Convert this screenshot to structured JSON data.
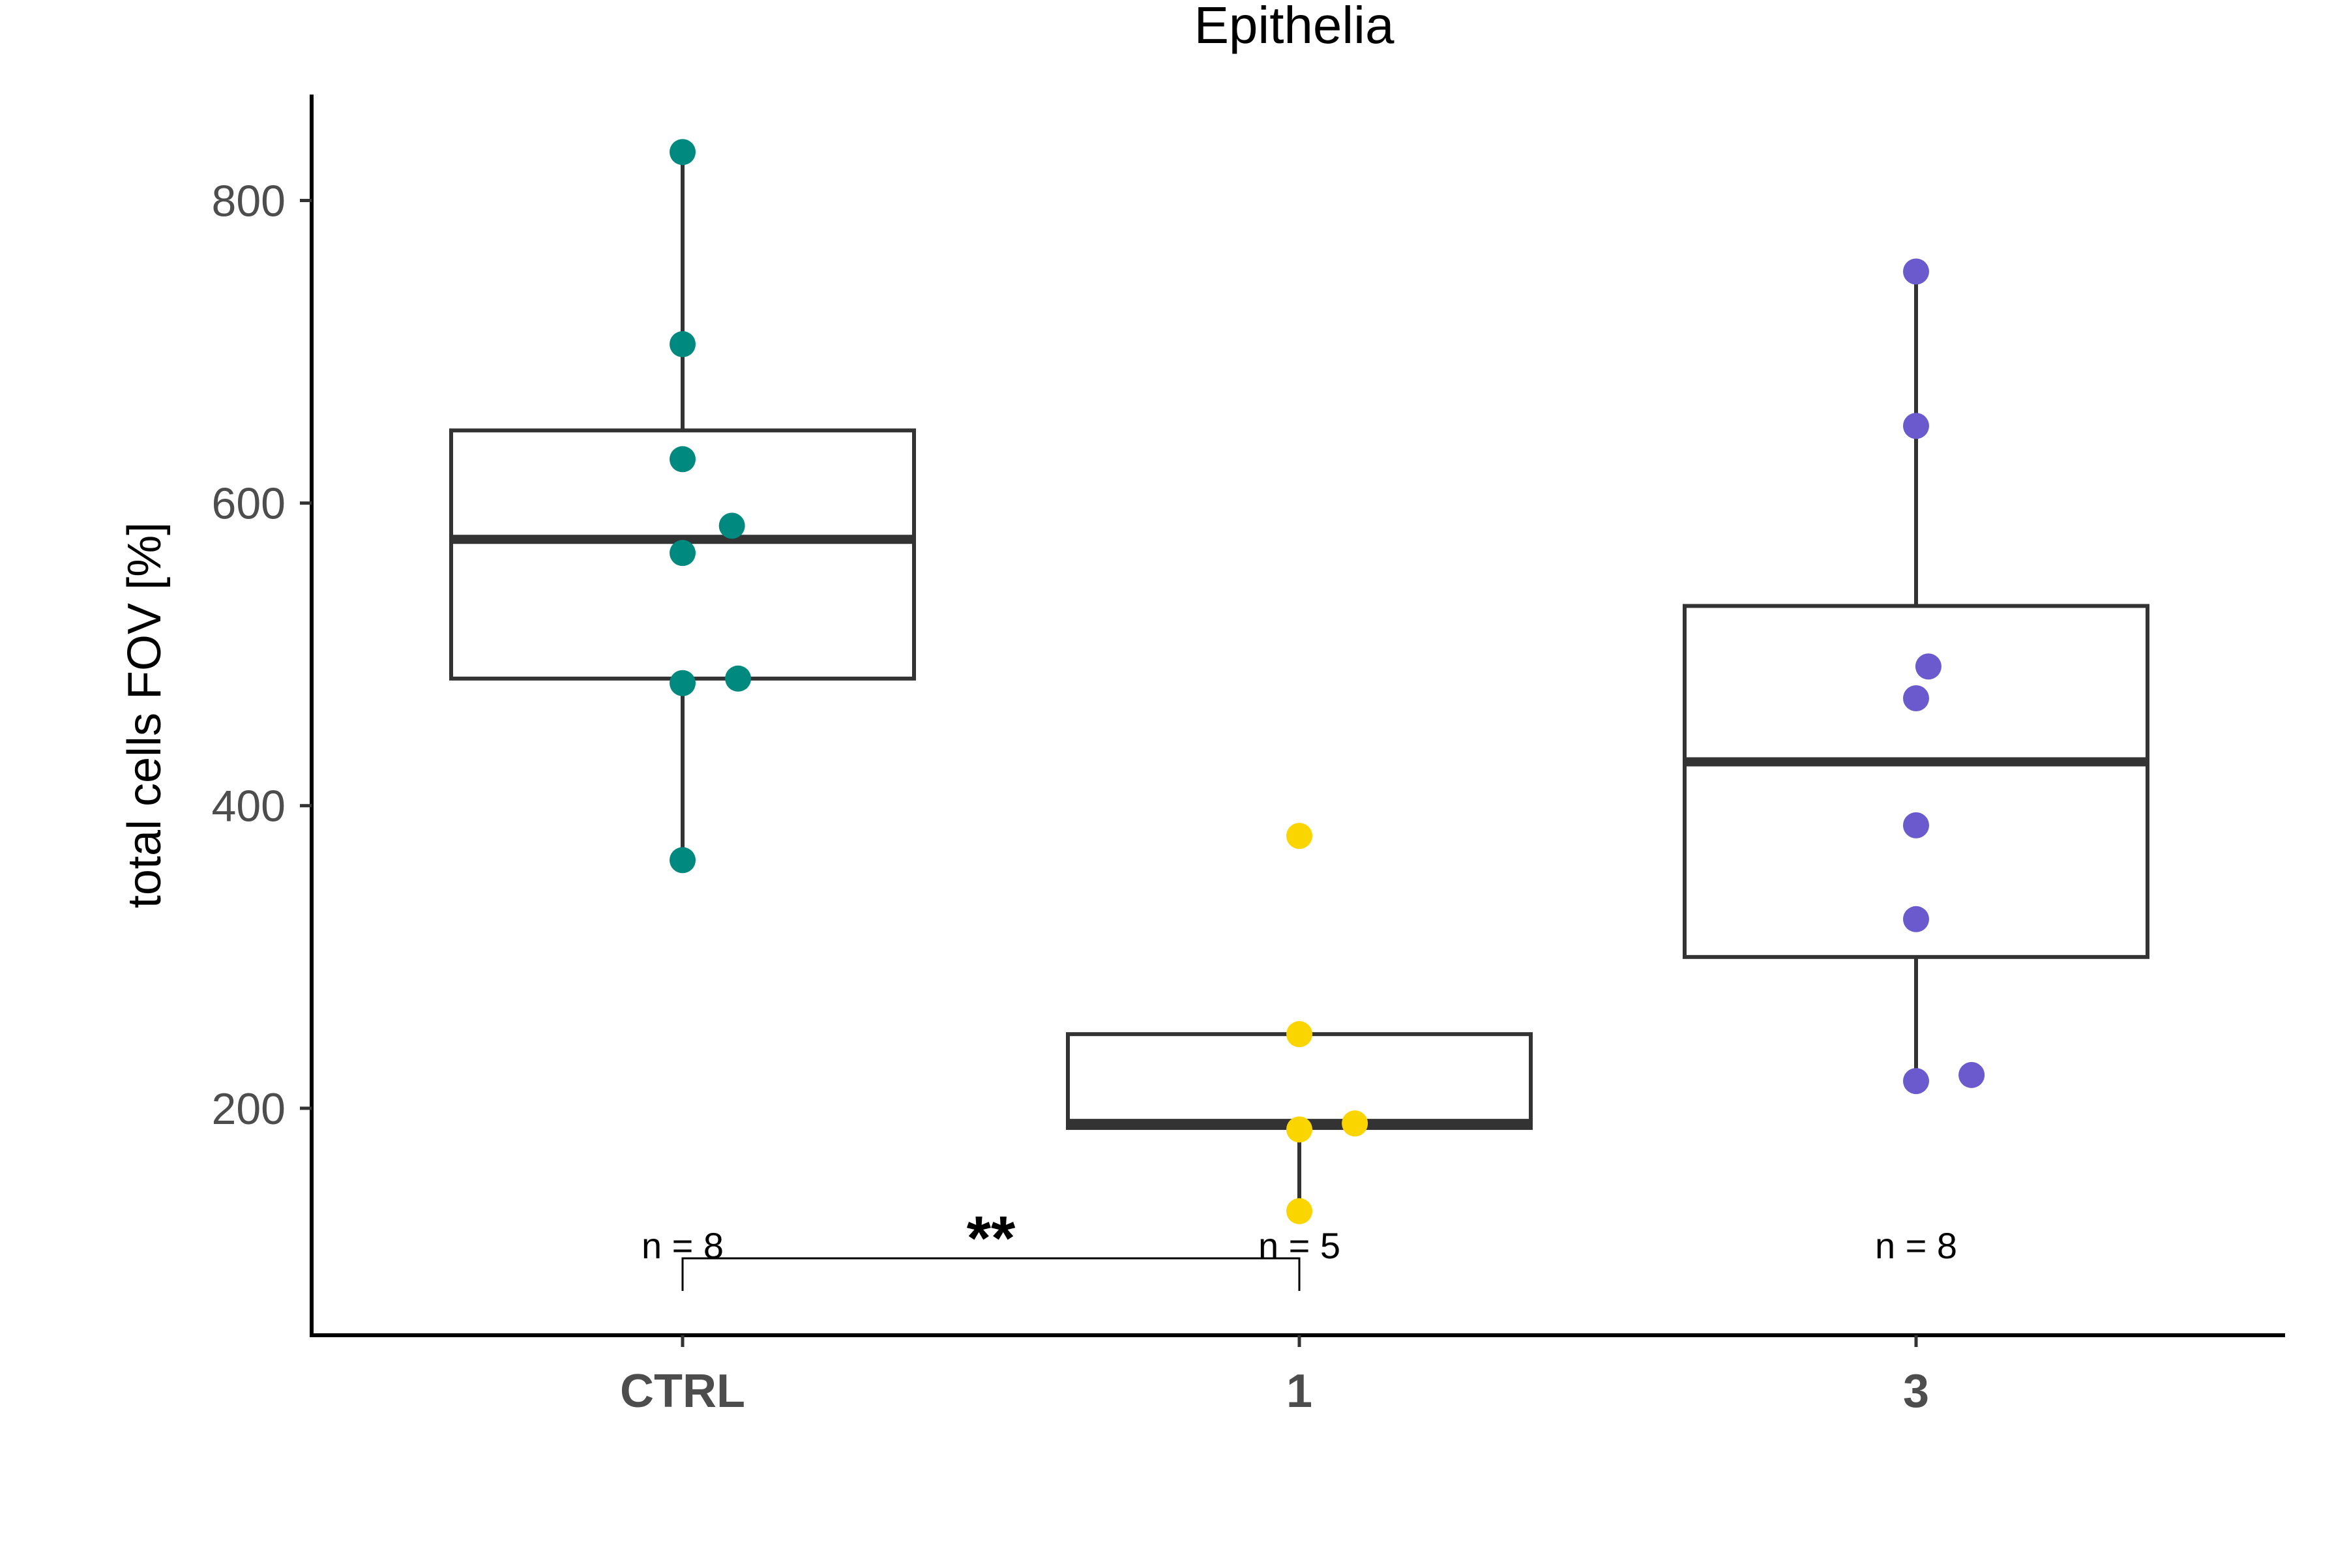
{
  "chart_data": {
    "type": "box",
    "title": "Epithelia",
    "xlabel": "",
    "ylabel": "total cells FOV [%]",
    "ylim": [
      50,
      870
    ],
    "yticks": [
      200,
      400,
      600,
      800
    ],
    "grid": false,
    "legend": "none",
    "categories": [
      "CTRL",
      "1",
      "3"
    ],
    "groups": [
      {
        "category": "CTRL",
        "color": "#00897f",
        "n_label": "n = 8",
        "box": {
          "q1": 484,
          "median": 576,
          "q3": 648,
          "whisker_low": 364,
          "whisker_high": 832
        },
        "points": [
          {
            "x_offset": 0.0,
            "value": 832
          },
          {
            "x_offset": 0.0,
            "value": 705
          },
          {
            "x_offset": 0.0,
            "value": 629
          },
          {
            "x_offset": 0.08,
            "value": 585
          },
          {
            "x_offset": 0.0,
            "value": 567
          },
          {
            "x_offset": 0.0,
            "value": 481
          },
          {
            "x_offset": 0.09,
            "value": 484
          },
          {
            "x_offset": 0.0,
            "value": 364
          }
        ]
      },
      {
        "category": "1",
        "color": "#fad500",
        "n_label": "n = 5",
        "box": {
          "q1": 187,
          "median": 190,
          "q3": 249,
          "whisker_low": 132,
          "whisker_high": 249
        },
        "outliers": [
          380
        ],
        "points": [
          {
            "x_offset": 0.0,
            "value": 380
          },
          {
            "x_offset": 0.0,
            "value": 249
          },
          {
            "x_offset": 0.09,
            "value": 190
          },
          {
            "x_offset": 0.0,
            "value": 186
          },
          {
            "x_offset": 0.0,
            "value": 132
          }
        ]
      },
      {
        "category": "3",
        "color": "#6a5acd",
        "n_label": "n = 8",
        "box": {
          "q1": 300,
          "median": 429,
          "q3": 532,
          "whisker_low": 218,
          "whisker_high": 753
        },
        "points": [
          {
            "x_offset": 0.0,
            "value": 753
          },
          {
            "x_offset": 0.0,
            "value": 651
          },
          {
            "x_offset": 0.02,
            "value": 492
          },
          {
            "x_offset": 0.0,
            "value": 471
          },
          {
            "x_offset": 0.0,
            "value": 387
          },
          {
            "x_offset": 0.0,
            "value": 325
          },
          {
            "x_offset": 0.0,
            "value": 218
          },
          {
            "x_offset": 0.09,
            "value": 222
          }
        ]
      }
    ],
    "significance": [
      {
        "from": "CTRL",
        "to": "1",
        "label": "**"
      }
    ]
  }
}
